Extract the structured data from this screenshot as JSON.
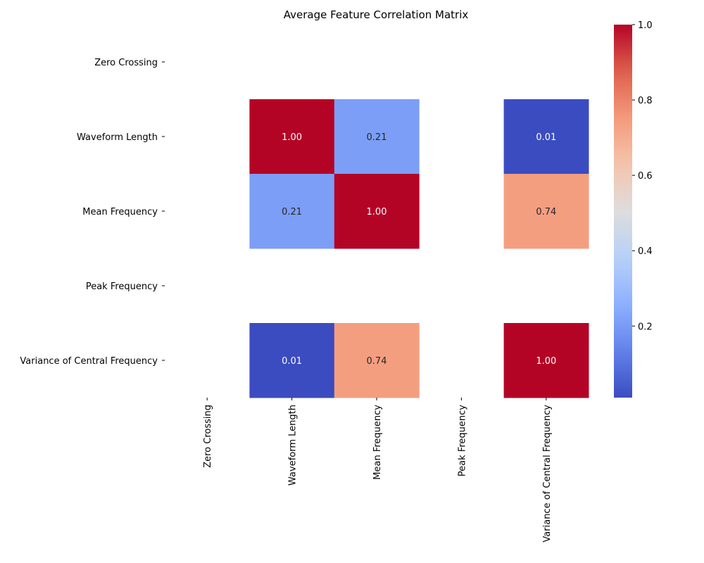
{
  "chart_data": {
    "type": "heatmap",
    "title": "Average Feature Correlation Matrix",
    "xlabel": "",
    "ylabel": "",
    "rows": [
      "Zero Crossing",
      "Waveform Length",
      "Mean Frequency",
      "Peak Frequency",
      "Variance of Central Frequency"
    ],
    "columns": [
      "Zero Crossing",
      "Waveform Length",
      "Mean Frequency",
      "Peak Frequency",
      "Variance of Central Frequency"
    ],
    "values": [
      [
        null,
        null,
        null,
        null,
        null
      ],
      [
        null,
        1.0,
        0.21,
        null,
        0.01
      ],
      [
        null,
        0.21,
        1.0,
        null,
        0.74
      ],
      [
        null,
        null,
        null,
        null,
        null
      ],
      [
        null,
        0.01,
        0.74,
        null,
        1.0
      ]
    ],
    "value_format": "0.00",
    "colormap": "coolwarm",
    "colorbar": {
      "min": 0.01,
      "max": 1.0,
      "ticks": [
        "0.2",
        "0.4",
        "0.6",
        "0.8",
        "1.0"
      ],
      "tick_values": [
        0.2,
        0.4,
        0.6,
        0.8,
        1.0
      ]
    },
    "grid": false
  }
}
